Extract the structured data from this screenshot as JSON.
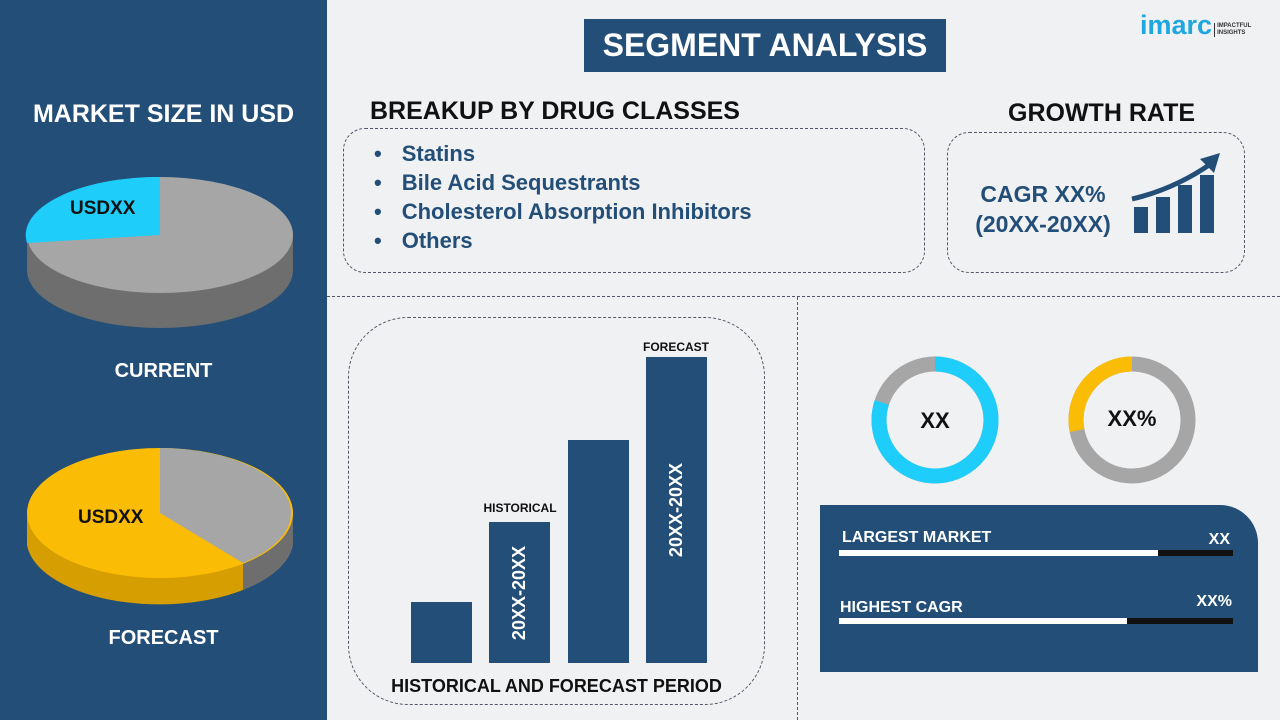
{
  "left": {
    "title": "MARKET SIZE IN USD",
    "current": {
      "label": "CURRENT",
      "value": "USDXX",
      "share": 0.2
    },
    "forecast": {
      "label": "FORECAST",
      "value": "USDXX",
      "share": 0.62
    }
  },
  "header": {
    "title": "SEGMENT ANALYSIS",
    "logo": "imarc IMPACTFUL INSIGHTS"
  },
  "breakup": {
    "title": "BREAKUP BY DRUG CLASSES",
    "items": [
      "Statins",
      "Bile Acid Sequestrants",
      "Cholesterol Absorption Inhibitors",
      "Others"
    ]
  },
  "growth": {
    "title": "GROWTH RATE",
    "cagr": "CAGR XX%",
    "period": "(20XX-20XX)",
    "icon": "growth-chart-arrow-icon"
  },
  "chart_data": {
    "type": "bar",
    "values": [
      20,
      46,
      73,
      100
    ],
    "bar_labels": [
      "",
      "20XX-20XX",
      "",
      "20XX-20XX"
    ],
    "annotations": [
      "HISTORICAL",
      "FORECAST"
    ],
    "xlabel": "HISTORICAL AND FORECAST PERIOD"
  },
  "donuts": [
    {
      "label": "XX",
      "fill": 0.8,
      "color": "#1fcdfb"
    },
    {
      "label": "XX%",
      "fill": 0.28,
      "color": "#fbbc05"
    }
  ],
  "stats": [
    {
      "label": "LARGEST MARKET",
      "value": "XX",
      "fill": 0.81
    },
    {
      "label": "HIGHEST CAGR",
      "value": "XX%",
      "fill": 0.73
    }
  ],
  "colors": {
    "navy": "#234e77",
    "cyan": "#1fcdfb",
    "yellow": "#fbbc05",
    "gray": "#a6a6a6"
  }
}
